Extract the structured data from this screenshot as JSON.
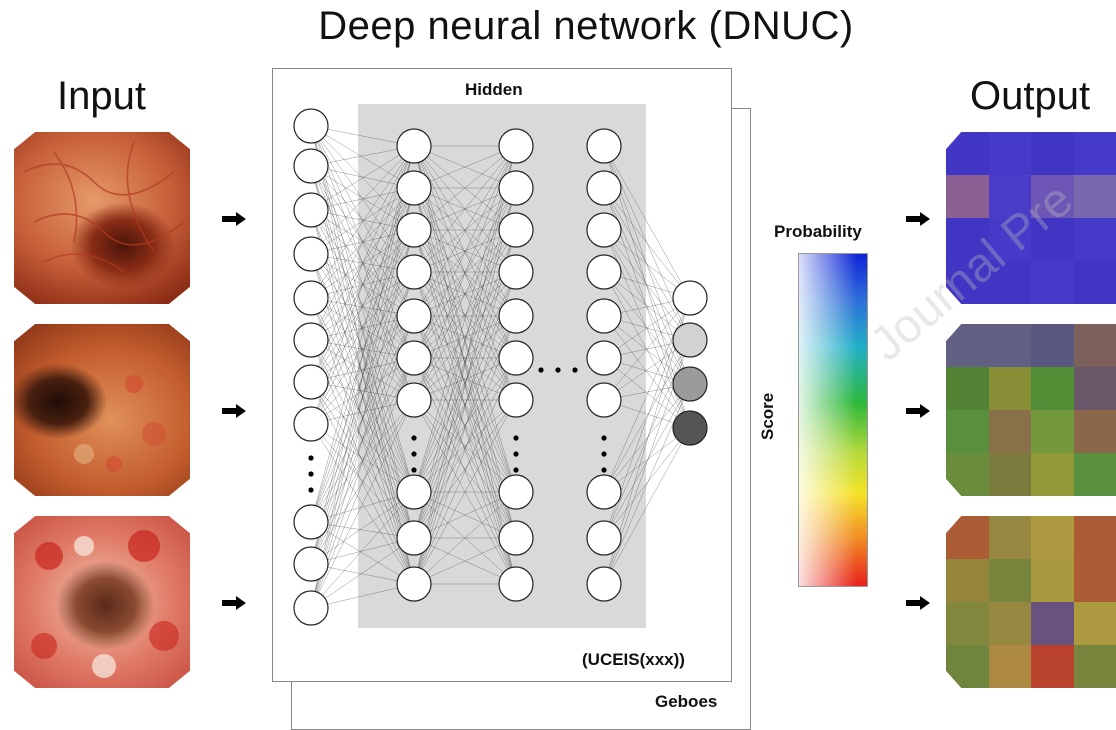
{
  "title": "Deep neural network (DNUC)",
  "input_label": "Input",
  "output_label": "Output",
  "hidden_label": "Hidden",
  "probability_label": "Probability",
  "score_label": "Score",
  "ucei_label": "(UCEIS(xxx))",
  "geboes_label": "Geboes",
  "watermark_text": "Journal Pre",
  "colors": {
    "hidden_panel": "#d9d9d9",
    "node_fill": "#ffffff",
    "output_nodes": [
      "#ffffff",
      "#d2d2d2",
      "#9b9b9b",
      "#555555"
    ]
  }
}
